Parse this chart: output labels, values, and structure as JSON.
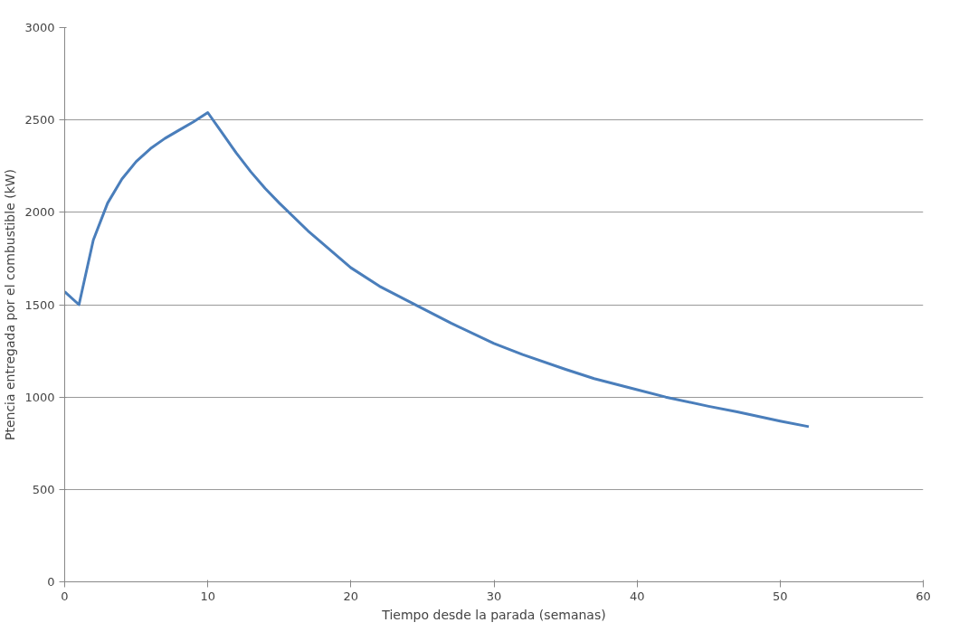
{
  "chart_data": {
    "type": "line",
    "xlabel": "Tiempo desde la parada (semanas)",
    "ylabel": "Ptencia entregada por el combustible (kW)",
    "xlim": [
      0,
      60
    ],
    "xticks": [
      0,
      10,
      20,
      30,
      40,
      50,
      60
    ],
    "ylim": [
      0,
      3000
    ],
    "yticks": [
      0,
      500,
      1000,
      1500,
      2000,
      2500,
      3000
    ],
    "grid": "y",
    "marker": "none",
    "line_style": "solid",
    "series": [
      {
        "color": "#4a7ebb",
        "x": [
          0,
          1,
          2,
          3,
          4,
          5,
          6,
          7,
          8,
          9,
          10,
          11,
          12,
          13,
          14,
          15,
          17,
          20,
          22,
          25,
          27,
          30,
          32,
          35,
          37,
          40,
          42,
          45,
          47,
          50,
          52
        ],
        "values": [
          1570,
          1500,
          1850,
          2050,
          2180,
          2275,
          2345,
          2400,
          2445,
          2490,
          2540,
          2430,
          2320,
          2220,
          2130,
          2050,
          1900,
          1700,
          1600,
          1480,
          1400,
          1290,
          1230,
          1150,
          1100,
          1040,
          1000,
          950,
          920,
          870,
          840
        ]
      }
    ]
  }
}
